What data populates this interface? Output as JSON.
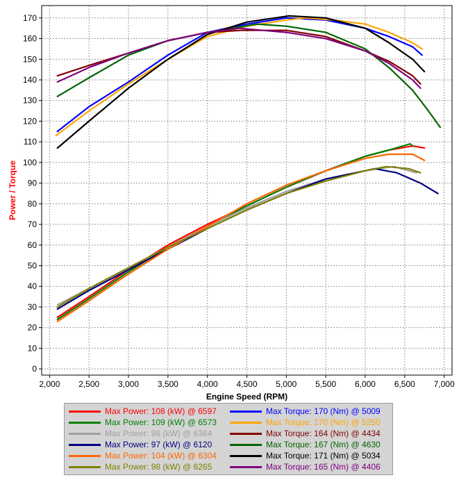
{
  "chart_data": {
    "type": "line",
    "xlabel": "Engine Speed (RPM)",
    "ylabel": "Power / Torque",
    "xlim": [
      1900,
      7100
    ],
    "ylim": [
      -3,
      176
    ],
    "x_ticks": [
      2000,
      2500,
      3000,
      3500,
      4000,
      4500,
      5000,
      5500,
      6000,
      6500,
      7000
    ],
    "x_tick_labels": [
      "2,000",
      "2,500",
      "3,000",
      "3,500",
      "4,000",
      "4,500",
      "5,000",
      "5,500",
      "6,000",
      "6,500",
      "7,000"
    ],
    "y_ticks": [
      0,
      10,
      20,
      30,
      40,
      50,
      60,
      70,
      80,
      90,
      100,
      110,
      120,
      130,
      140,
      150,
      160,
      170
    ],
    "grid": true,
    "legend_placement": "bottom",
    "series": [
      {
        "name": "Max Power",
        "value_text": "108 (kW) @ 6597",
        "color": "#ff0000",
        "x": [
          2100,
          2500,
          3000,
          3500,
          4000,
          4500,
          5000,
          5500,
          6000,
          6300,
          6600,
          6750
        ],
        "y": [
          25,
          35,
          48,
          60,
          70,
          79,
          88,
          96,
          103,
          106,
          108,
          107
        ]
      },
      {
        "name": "Max Power",
        "value_text": "109 (kW) @ 6573",
        "color": "#008000",
        "x": [
          2100,
          2500,
          3000,
          3500,
          4000,
          4500,
          5000,
          5500,
          6000,
          6300,
          6570,
          6600
        ],
        "y": [
          24,
          34,
          47,
          59,
          69,
          79,
          88,
          96,
          103,
          106,
          109,
          108
        ]
      },
      {
        "name": "Max Power",
        "value_text": "98 (kW) @ 6364",
        "color": "#a0a0a0",
        "x": [
          2100,
          2500,
          3000,
          3500,
          4000,
          4500,
          5000,
          5500,
          6000,
          6360,
          6650
        ],
        "y": [
          31,
          39,
          49,
          59,
          69,
          78,
          86,
          92,
          96,
          98,
          95
        ]
      },
      {
        "name": "Max Power",
        "value_text": "97 (kW) @ 6120",
        "color": "#000080",
        "x": [
          2100,
          2500,
          3000,
          3500,
          4000,
          4500,
          5000,
          5500,
          6000,
          6120,
          6400,
          6700,
          6920
        ],
        "y": [
          29,
          38,
          48,
          58,
          68,
          77,
          85,
          92,
          96,
          97,
          95,
          90,
          85
        ]
      },
      {
        "name": "Max Power",
        "value_text": "104 (kW) @ 6304",
        "color": "#ff6600",
        "x": [
          2100,
          2500,
          3000,
          3500,
          4000,
          4500,
          5000,
          5500,
          6000,
          6300,
          6600,
          6750
        ],
        "y": [
          23,
          33,
          46,
          58,
          69,
          80,
          89,
          96,
          102,
          104,
          104,
          101
        ]
      },
      {
        "name": "Max Power",
        "value_text": "98 (kW) @ 6265",
        "color": "#808000",
        "x": [
          2100,
          2500,
          3000,
          3500,
          4000,
          4500,
          5000,
          5500,
          6000,
          6265,
          6550,
          6700
        ],
        "y": [
          30,
          39,
          49,
          59,
          68,
          77,
          85,
          91,
          96,
          98,
          97,
          95
        ]
      },
      {
        "name": "Max Torque",
        "value_text": "170 (Nm) @ 5009",
        "color": "#0000ff",
        "x": [
          2100,
          2500,
          3000,
          3500,
          4000,
          4500,
          5000,
          5500,
          6000,
          6300,
          6600,
          6720
        ],
        "y": [
          115,
          127,
          139,
          152,
          163,
          167,
          170,
          169,
          165,
          161,
          156,
          152
        ]
      },
      {
        "name": "Max Torque",
        "value_text": "170 (Nm) @ 5250",
        "color": "#ffa500",
        "x": [
          2080,
          2500,
          3000,
          3500,
          4000,
          4500,
          5000,
          5250,
          5600,
          6000,
          6300,
          6600,
          6720
        ],
        "y": [
          113,
          125,
          138,
          150,
          161,
          166,
          169,
          170,
          169,
          167,
          163,
          158,
          155
        ]
      },
      {
        "name": "Max Torque",
        "value_text": "164 (Nm) @ 4434",
        "color": "#800000",
        "x": [
          2100,
          2500,
          3000,
          3500,
          4000,
          4434,
          5000,
          5500,
          6000,
          6300,
          6600,
          6700
        ],
        "y": [
          142,
          147,
          153,
          159,
          163,
          164,
          164,
          161,
          154,
          149,
          142,
          138
        ]
      },
      {
        "name": "Max Torque",
        "value_text": "167 (Nm) @ 4630",
        "color": "#006400",
        "x": [
          2100,
          2500,
          3000,
          3500,
          4000,
          4630,
          5000,
          5500,
          6000,
          6300,
          6600,
          6800,
          6950
        ],
        "y": [
          132,
          141,
          152,
          159,
          163,
          167,
          166,
          163,
          155,
          146,
          135,
          125,
          117
        ]
      },
      {
        "name": "Max Torque",
        "value_text": "171 (Nm) @ 5034",
        "color": "#000000",
        "x": [
          2100,
          2500,
          3000,
          3500,
          4000,
          4500,
          5034,
          5500,
          6000,
          6300,
          6600,
          6750
        ],
        "y": [
          107,
          120,
          136,
          150,
          162,
          168,
          171,
          170,
          165,
          158,
          150,
          144
        ]
      },
      {
        "name": "Max Torque",
        "value_text": "165 (Nm) @ 4406",
        "color": "#800080",
        "x": [
          2100,
          2500,
          3000,
          3500,
          4000,
          4406,
          5000,
          5500,
          6000,
          6300,
          6600,
          6700
        ],
        "y": [
          139,
          146,
          153,
          159,
          163,
          165,
          163,
          160,
          154,
          148,
          140,
          136
        ]
      }
    ]
  },
  "legend": {
    "left": [
      {
        "name": "Max Power",
        "value_text": "108 (kW) @ 6597",
        "color": "#ff0000",
        "text_color": "#ff0000"
      },
      {
        "name": "Max Power",
        "value_text": "109 (kW) @ 6573",
        "color": "#008000",
        "text_color": "#008000"
      },
      {
        "name": "Max Power",
        "value_text": "98 (kW) @ 6364",
        "color": "#a0a0a0",
        "text_color": "#a0a0a0"
      },
      {
        "name": "Max Power",
        "value_text": "97 (kW) @ 6120",
        "color": "#000080",
        "text_color": "#000080"
      },
      {
        "name": "Max Power",
        "value_text": "104 (kW) @ 6304",
        "color": "#ff6600",
        "text_color": "#ff6600"
      },
      {
        "name": "Max Power",
        "value_text": "98 (kW) @ 6265",
        "color": "#808000",
        "text_color": "#808000"
      }
    ],
    "right": [
      {
        "name": "Max Torque",
        "value_text": "170 (Nm) @ 5009",
        "color": "#0000ff",
        "text_color": "#0000ff"
      },
      {
        "name": "Max Torque",
        "value_text": "170 (Nm) @ 5250",
        "color": "#ffa500",
        "text_color": "#ffa500"
      },
      {
        "name": "Max Torque",
        "value_text": "164 (Nm) @ 4434",
        "color": "#800000",
        "text_color": "#800000"
      },
      {
        "name": "Max Torque",
        "value_text": "167 (Nm) @ 4630",
        "color": "#006400",
        "text_color": "#006400"
      },
      {
        "name": "Max Torque",
        "value_text": "171 (Nm) @ 5034",
        "color": "#000000",
        "text_color": "#000000"
      },
      {
        "name": "Max Torque",
        "value_text": "165 (Nm) @ 4406",
        "color": "#800080",
        "text_color": "#800080"
      }
    ]
  },
  "colors": {
    "ylabel": "#ff0000",
    "xlabel": "#000000",
    "legend_bg": "#d4d4d4"
  }
}
